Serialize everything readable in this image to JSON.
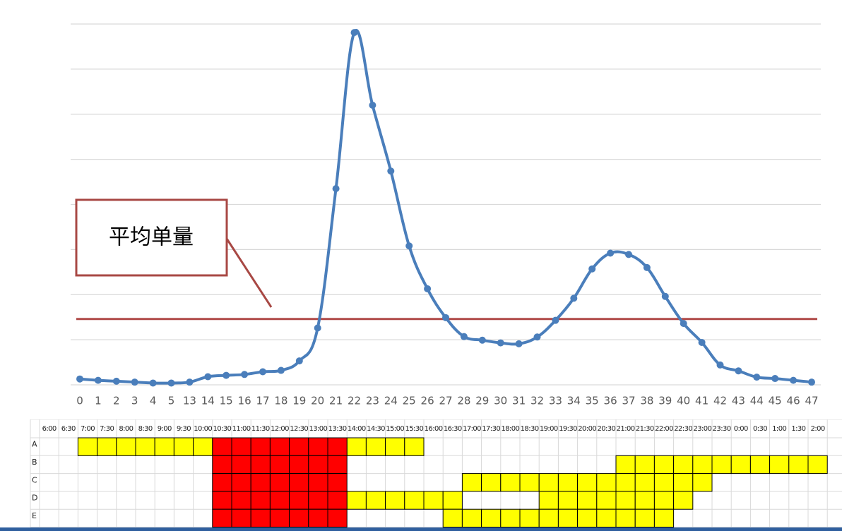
{
  "colors": {
    "line": "#4a7ebb",
    "average": "#b04a48",
    "grid": "#d9d9d9",
    "callout_border": "#a84844",
    "peak": "#ff0000",
    "busy": "#ffff00",
    "cell_border": "#000000",
    "sheet_grid": "#d9d9d9"
  },
  "chart_data": {
    "type": "line",
    "categories": [
      "0",
      "1",
      "2",
      "3",
      "4",
      "5",
      "13",
      "14",
      "15",
      "16",
      "17",
      "18",
      "19",
      "20",
      "21",
      "22",
      "23",
      "24",
      "25",
      "26",
      "27",
      "28",
      "29",
      "30",
      "31",
      "32",
      "33",
      "34",
      "35",
      "36",
      "37",
      "38",
      "39",
      "40",
      "41",
      "42",
      "43",
      "44",
      "45",
      "46",
      "47"
    ],
    "series": [
      {
        "values": [
          0.65,
          0.5,
          0.4,
          0.3,
          0.2,
          0.2,
          0.3,
          0.9,
          1.05,
          1.15,
          1.45,
          1.6,
          2.65,
          6.3,
          21.75,
          39.05,
          31.0,
          23.7,
          15.4,
          10.65,
          7.45,
          5.35,
          4.95,
          4.65,
          4.55,
          5.3,
          7.15,
          9.6,
          12.85,
          14.6,
          14.45,
          13.0,
          9.8,
          6.8,
          4.7,
          2.2,
          1.55,
          0.85,
          0.7,
          0.5,
          0.3
        ]
      }
    ],
    "average": 7.3,
    "ylim": [
      0,
      40
    ],
    "grid": true,
    "gridlines": 9
  },
  "callout": {
    "text": "平均单量"
  },
  "schedule": {
    "times": [
      "6:00",
      "6:30",
      "7:00",
      "7:30",
      "8:00",
      "8:30",
      "9:00",
      "9:30",
      "10:00",
      "10:30",
      "11:00",
      "11:30",
      "12:00",
      "12:30",
      "13:00",
      "13:30",
      "14:00",
      "14:30",
      "15:00",
      "15:30",
      "16:00",
      "16:30",
      "17:00",
      "17:30",
      "18:00",
      "18:30",
      "19:00",
      "19:30",
      "20:00",
      "20:30",
      "21:00",
      "21:30",
      "22:00",
      "22:30",
      "23:00",
      "23:30",
      "0:00",
      "0:30",
      "1:00",
      "1:30",
      "2:00"
    ],
    "rows": [
      {
        "label": "A",
        "yellow": [
          [
            2,
            8
          ],
          [
            16,
            19
          ]
        ]
      },
      {
        "label": "B",
        "yellow": [
          [
            30,
            40
          ]
        ]
      },
      {
        "label": "C",
        "yellow": [
          [
            22,
            34
          ]
        ]
      },
      {
        "label": "D",
        "yellow": [
          [
            16,
            21
          ],
          [
            26,
            33
          ]
        ]
      },
      {
        "label": "E",
        "yellow": [
          [
            21,
            32
          ]
        ]
      }
    ],
    "red": [
      9,
      15
    ]
  }
}
